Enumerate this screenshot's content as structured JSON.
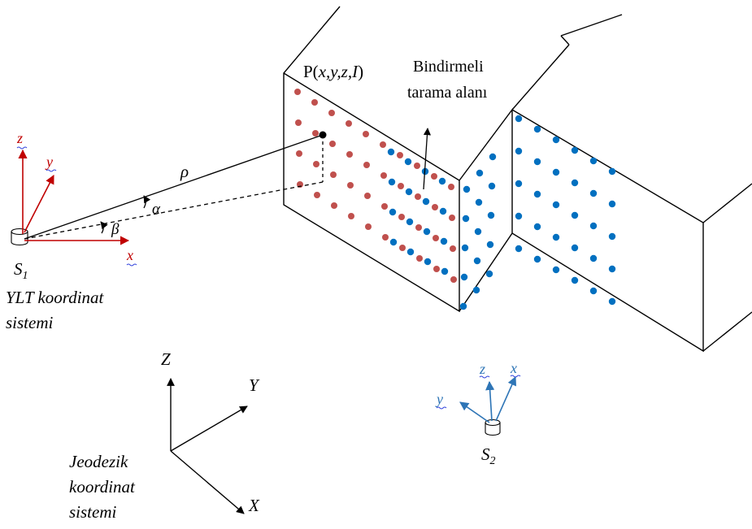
{
  "point_label": {
    "prefix": "P(",
    "vars": "x,y,z,I",
    "suffix": ")"
  },
  "overlap_label": {
    "line1": "Bindirmeli",
    "line2": "tarama alanı"
  },
  "scanner1": {
    "name": "S",
    "sub": "1",
    "axes": {
      "z": "z",
      "y": "y",
      "x": "x"
    },
    "caption": {
      "line1": "YLT koordinat",
      "line2": "sistemi"
    }
  },
  "scanner2": {
    "name": "S",
    "sub": "2",
    "axes": {
      "y": "y",
      "z": "z",
      "x": "x"
    }
  },
  "angles": {
    "rho": "ρ",
    "alpha": "α",
    "beta": "β"
  },
  "geodetic": {
    "axes": {
      "Z": "Z",
      "Y": "Y",
      "X": "X"
    },
    "caption": {
      "line1": "Jeodezik",
      "line2": "koordinat",
      "line3": "sistemi"
    }
  },
  "colors": {
    "red_axis": "#c00000",
    "blue_axis": "#2e75b6",
    "red_dot": "#c0504d",
    "blue_dot": "#0070c0",
    "underline": "#3344dd"
  }
}
